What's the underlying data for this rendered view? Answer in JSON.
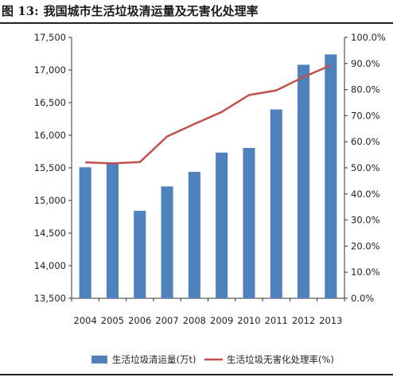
{
  "figure": {
    "label": "图 13:",
    "title": "我国城市生活垃圾清运量及无害化处理率"
  },
  "chart_data": {
    "type": "bar",
    "categories": [
      "2004",
      "2005",
      "2006",
      "2007",
      "2008",
      "2009",
      "2010",
      "2011",
      "2012",
      "2013"
    ],
    "series": [
      {
        "name": "生活垃圾清运量(万t)",
        "type": "bar",
        "axis": "left",
        "color": "#4f81bd",
        "values": [
          15509,
          15577,
          14841,
          15215,
          15438,
          15734,
          15805,
          16395,
          17081,
          17239
        ]
      },
      {
        "name": "生活垃圾无害化处理率(%)",
        "type": "line",
        "axis": "right",
        "color": "#c0504d",
        "values": [
          52.1,
          51.7,
          52.2,
          62.0,
          66.8,
          71.4,
          77.9,
          79.7,
          84.8,
          89.3
        ]
      }
    ],
    "y_left": {
      "ylim": [
        13500,
        17500
      ],
      "ticks": [
        13500,
        14000,
        14500,
        15000,
        15500,
        16000,
        16500,
        17000,
        17500
      ],
      "tick_labels": [
        "13,500",
        "14,000",
        "14,500",
        "15,000",
        "15,500",
        "16,000",
        "16,500",
        "17,000",
        "17,500"
      ]
    },
    "y_right": {
      "ylim": [
        0,
        100
      ],
      "ticks": [
        0,
        10,
        20,
        30,
        40,
        50,
        60,
        70,
        80,
        90,
        100
      ],
      "tick_labels": [
        "0.0%",
        "10.0%",
        "20.0%",
        "30.0%",
        "40.0%",
        "50.0%",
        "60.0%",
        "70.0%",
        "80.0%",
        "90.0%",
        "100.0%"
      ]
    },
    "grid": false,
    "legend_position": "bottom"
  }
}
